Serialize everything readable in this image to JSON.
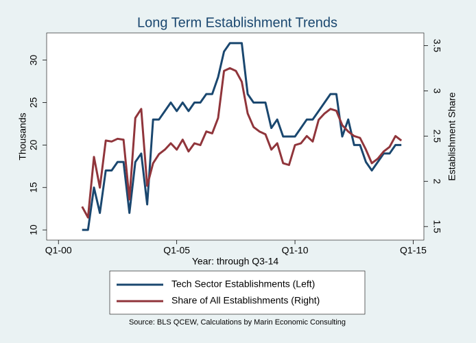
{
  "chart_data": {
    "type": "line",
    "title": "Long Term Establishment Trends",
    "xlabel": "Year: through Q3-14",
    "ylabel": "Thousands",
    "y2label": "Establishment Share",
    "source": "Source: BLS QCEW, Calculations by Marin Economic Consulting",
    "x": [
      2001,
      2001.25,
      2001.5,
      2001.75,
      2002,
      2002.25,
      2002.5,
      2002.75,
      2003,
      2003.25,
      2003.5,
      2003.75,
      2004,
      2004.25,
      2004.5,
      2004.75,
      2005,
      2005.25,
      2005.5,
      2005.75,
      2006,
      2006.25,
      2006.5,
      2006.75,
      2007,
      2007.25,
      2007.5,
      2007.75,
      2008,
      2008.25,
      2008.5,
      2008.75,
      2009,
      2009.25,
      2009.5,
      2009.75,
      2010,
      2010.25,
      2010.5,
      2010.75,
      2011,
      2011.25,
      2011.5,
      2011.75,
      2012,
      2012.25,
      2012.5,
      2012.75,
      2013,
      2013.25,
      2013.5,
      2013.75,
      2014,
      2014.25,
      2014.5
    ],
    "series": [
      {
        "name": "Tech Sector Establishments (Left)",
        "color": "#1a476f",
        "axis": "y",
        "values": [
          10,
          10,
          15,
          12,
          17,
          17,
          18,
          18,
          12,
          18,
          19,
          13,
          23,
          23,
          24,
          25,
          24,
          25,
          24,
          25,
          25,
          26,
          26,
          28,
          31,
          32,
          32,
          32,
          26,
          25,
          25,
          25,
          22,
          23,
          21,
          21,
          21,
          22,
          23,
          23,
          24,
          25,
          26,
          26,
          21,
          23,
          20,
          20,
          18,
          17,
          18,
          19,
          19,
          20,
          20
        ]
      },
      {
        "name": "Share of All Establishments (Right)",
        "color": "#90353b",
        "axis": "y2",
        "values": [
          1.72,
          1.6,
          2.27,
          1.93,
          2.45,
          2.44,
          2.47,
          2.46,
          1.8,
          2.7,
          2.8,
          1.95,
          2.2,
          2.3,
          2.35,
          2.42,
          2.35,
          2.46,
          2.33,
          2.42,
          2.4,
          2.55,
          2.53,
          2.7,
          3.22,
          3.25,
          3.22,
          3.1,
          2.75,
          2.6,
          2.55,
          2.52,
          2.35,
          2.42,
          2.2,
          2.18,
          2.4,
          2.42,
          2.5,
          2.44,
          2.68,
          2.75,
          2.8,
          2.78,
          2.62,
          2.55,
          2.5,
          2.48,
          2.35,
          2.2,
          2.25,
          2.33,
          2.38,
          2.5,
          2.45
        ]
      }
    ],
    "xlim": [
      1999.5,
      2015.45
    ],
    "xticks": [
      {
        "value": 2000,
        "label": "Q1-00"
      },
      {
        "value": 2005,
        "label": "Q1-05"
      },
      {
        "value": 2010,
        "label": "Q1-10"
      },
      {
        "value": 2015,
        "label": "Q1-15"
      }
    ],
    "ylim": [
      8.8,
      33.2
    ],
    "yticks": [
      10,
      15,
      20,
      25,
      30
    ],
    "y2lim": [
      1.35,
      3.64
    ],
    "y2ticks": [
      1.5,
      2,
      2.5,
      3,
      3.5
    ],
    "legend": "bottom"
  }
}
